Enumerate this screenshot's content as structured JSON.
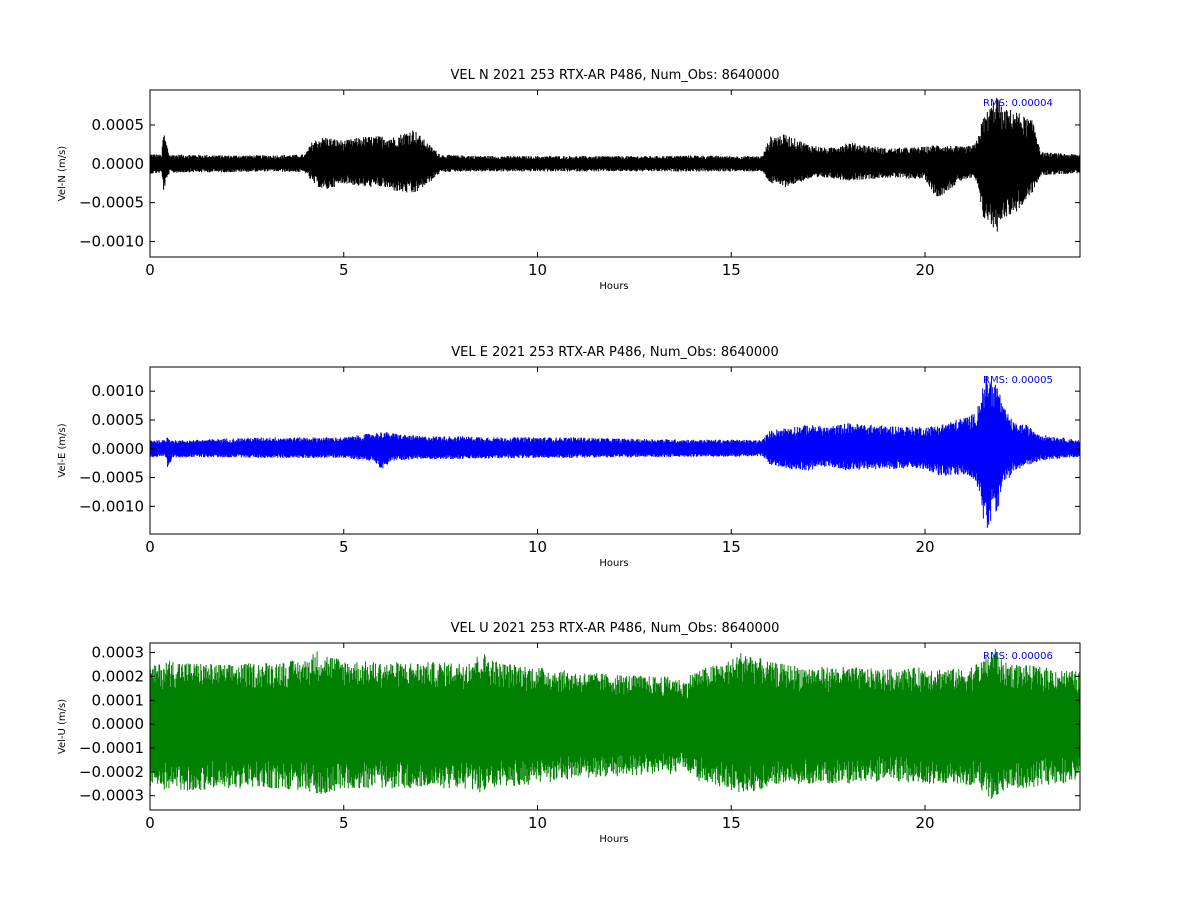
{
  "chart_data": [
    {
      "type": "line",
      "title": "VEL N 2021 253 RTX-AR  P486, Num_Obs: 8640000",
      "xlabel": "Hours",
      "ylabel": "Vel-N (m/s)",
      "xlim": [
        0,
        24
      ],
      "ylim": [
        -0.0012,
        0.00095
      ],
      "xticks": [
        0,
        5,
        10,
        15,
        20
      ],
      "yticks": [
        0.0005,
        0.0,
        -0.0005,
        -0.001
      ],
      "ytick_labels": [
        "0.0005",
        "0.0000",
        "−0.0005",
        "−0.0010"
      ],
      "color": "#000000",
      "annotation": "RMS:  0.00004",
      "annotation_color": "#0000ff",
      "envelope": {
        "x": [
          0,
          0.3,
          0.35,
          0.5,
          1,
          2,
          3,
          4,
          4.2,
          4.5,
          5,
          5.5,
          6,
          6.3,
          6.8,
          7.2,
          7.5,
          8,
          9,
          10,
          11,
          12,
          13,
          14,
          15,
          15.8,
          16,
          16.4,
          17,
          17.5,
          18,
          19,
          20,
          20.3,
          21,
          21.3,
          21.5,
          21.7,
          21.85,
          22,
          22.3,
          22.6,
          22.8,
          23,
          24
        ],
        "upper": [
          0.00013,
          0.00012,
          0.00042,
          0.00012,
          0.00012,
          0.00011,
          0.00011,
          0.00012,
          0.0003,
          0.00035,
          0.0003,
          0.00035,
          0.00036,
          0.00035,
          0.00045,
          0.00025,
          0.00012,
          0.00011,
          0.0001,
          0.0001,
          0.0001,
          0.0001,
          0.0001,
          0.00011,
          0.0001,
          0.0001,
          0.00035,
          0.00038,
          0.00025,
          0.0002,
          0.00028,
          0.0002,
          0.00022,
          0.00025,
          0.00022,
          0.00025,
          0.0006,
          0.00075,
          0.0009,
          0.0007,
          0.0007,
          0.0006,
          0.00055,
          0.00015,
          0.00012
        ],
        "lower": [
          -0.00013,
          -0.00012,
          -0.00035,
          -0.00012,
          -0.00011,
          -0.00011,
          -0.0001,
          -0.00011,
          -0.00025,
          -0.00035,
          -0.00025,
          -0.0003,
          -0.0003,
          -0.00035,
          -0.0004,
          -0.00025,
          -0.00011,
          -0.0001,
          -0.0001,
          -0.0001,
          -0.0001,
          -0.0001,
          -0.0001,
          -0.0001,
          -0.0001,
          -0.0001,
          -0.00025,
          -0.0003,
          -0.0002,
          -0.00018,
          -0.00022,
          -0.00018,
          -0.0002,
          -0.00045,
          -0.0002,
          -0.0002,
          -0.0007,
          -0.0008,
          -0.0009,
          -0.0007,
          -0.00065,
          -0.0005,
          -0.00035,
          -0.00015,
          -0.00012
        ]
      }
    },
    {
      "type": "line",
      "title": "VEL E 2021 253 RTX-AR  P486, Num_Obs: 8640000",
      "xlabel": "Hours",
      "ylabel": "Vel-E (m/s)",
      "xlim": [
        0,
        24
      ],
      "ylim": [
        -0.00148,
        0.00142
      ],
      "xticks": [
        0,
        5,
        10,
        15,
        20
      ],
      "yticks": [
        0.001,
        0.0005,
        0.0,
        -0.0005,
        -0.001
      ],
      "ytick_labels": [
        "0.0010",
        "0.0005",
        "0.0000",
        "−0.0005",
        "−0.0010"
      ],
      "color": "#0000ff",
      "annotation": "RMS:  0.00005",
      "annotation_color": "#0000ff",
      "envelope": {
        "x": [
          0,
          0.4,
          0.45,
          0.6,
          1,
          2,
          3,
          4,
          5,
          5.8,
          6,
          6.2,
          6.5,
          7,
          8,
          9,
          10,
          11,
          12,
          13,
          14,
          15,
          15.8,
          16,
          16.5,
          17,
          17.5,
          18,
          19,
          20,
          20.4,
          21,
          21.3,
          21.5,
          21.6,
          21.75,
          21.9,
          22,
          22.3,
          22.6,
          23,
          24
        ],
        "upper": [
          0.00016,
          0.00015,
          0.00022,
          0.00015,
          0.00015,
          0.00018,
          0.0002,
          0.0002,
          0.0002,
          0.00028,
          0.0003,
          0.00028,
          0.00025,
          0.00022,
          0.00022,
          0.0002,
          0.0002,
          0.0002,
          0.00018,
          0.00017,
          0.00016,
          0.00016,
          0.00015,
          0.00032,
          0.00038,
          0.00042,
          0.00038,
          0.00045,
          0.0004,
          0.00038,
          0.00042,
          0.00055,
          0.00062,
          0.0011,
          0.0013,
          0.0012,
          0.0011,
          0.00075,
          0.00045,
          0.00042,
          0.00025,
          0.00015
        ],
        "lower": [
          -0.00015,
          -0.00015,
          -0.00035,
          -0.00015,
          -0.00015,
          -0.00015,
          -0.00016,
          -0.00016,
          -0.00016,
          -0.00022,
          -0.00038,
          -0.00022,
          -0.0002,
          -0.00018,
          -0.00018,
          -0.00017,
          -0.00016,
          -0.00016,
          -0.00015,
          -0.00015,
          -0.00014,
          -0.00014,
          -0.00013,
          -0.00028,
          -0.00035,
          -0.00038,
          -0.0003,
          -0.00038,
          -0.00035,
          -0.00035,
          -0.00048,
          -0.00045,
          -0.00055,
          -0.0012,
          -0.00145,
          -0.0012,
          -0.001,
          -0.00065,
          -0.0004,
          -0.0003,
          -0.0002,
          -0.00014
        ]
      }
    },
    {
      "type": "line",
      "title": "VEL U 2021 253 RTX-AR  P486, Num_Obs: 8640000",
      "xlabel": "Hours",
      "ylabel": "Vel-U (m/s)",
      "xlim": [
        0,
        24
      ],
      "ylim": [
        -0.00036,
        0.00034
      ],
      "xticks": [
        0,
        5,
        10,
        15,
        20
      ],
      "yticks": [
        0.0003,
        0.0002,
        0.0001,
        0.0,
        -0.0001,
        -0.0002,
        -0.0003
      ],
      "ytick_labels": [
        "0.0003",
        "0.0002",
        "0.0001",
        "0.0000",
        "−0.0001",
        "−0.0002",
        "−0.0003"
      ],
      "color": "#008000",
      "annotation": "RMS:  0.00006",
      "annotation_color": "#0000ff",
      "envelope": {
        "x": [
          0,
          0.5,
          1,
          2,
          3,
          4,
          4.3,
          5,
          6,
          7,
          8,
          8.6,
          9,
          10,
          11,
          12,
          13,
          13.5,
          13.8,
          14,
          15,
          15.3,
          16,
          17,
          18,
          19,
          20,
          21,
          21.5,
          21.8,
          22,
          23,
          24
        ],
        "upper": [
          0.00024,
          0.00027,
          0.00026,
          0.00025,
          0.00026,
          0.00027,
          0.00031,
          0.00027,
          0.00026,
          0.00026,
          0.00026,
          0.0003,
          0.00026,
          0.00024,
          0.00022,
          0.00021,
          0.0002,
          0.0002,
          0.00018,
          0.00022,
          0.00027,
          0.00031,
          0.00026,
          0.00024,
          0.00024,
          0.00023,
          0.00024,
          0.00023,
          0.00027,
          0.00033,
          0.00026,
          0.00024,
          0.00022
        ],
        "lower": [
          -0.00026,
          -0.00028,
          -0.00028,
          -0.00027,
          -0.00027,
          -0.00028,
          -0.0003,
          -0.00027,
          -0.00027,
          -0.00027,
          -0.00027,
          -0.00029,
          -0.00027,
          -0.00025,
          -0.00023,
          -0.00022,
          -0.00021,
          -0.00021,
          -0.00018,
          -0.00023,
          -0.00028,
          -0.0003,
          -0.00026,
          -0.00025,
          -0.00025,
          -0.00024,
          -0.00025,
          -0.00025,
          -0.00028,
          -0.00033,
          -0.00028,
          -0.00026,
          -0.00024
        ]
      }
    }
  ]
}
